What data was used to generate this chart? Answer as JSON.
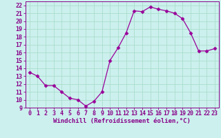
{
  "x": [
    0,
    1,
    2,
    3,
    4,
    5,
    6,
    7,
    8,
    9,
    10,
    11,
    12,
    13,
    14,
    15,
    16,
    17,
    18,
    19,
    20,
    21,
    22,
    23
  ],
  "y": [
    13.5,
    13.0,
    11.8,
    11.8,
    11.0,
    10.2,
    10.0,
    9.2,
    9.8,
    11.0,
    15.0,
    16.6,
    18.5,
    21.3,
    21.2,
    21.8,
    21.5,
    21.3,
    21.0,
    20.3,
    18.5,
    16.2,
    16.2,
    16.5
  ],
  "xlim": [
    -0.5,
    23.5
  ],
  "ylim": [
    9,
    22.5
  ],
  "yticks": [
    9,
    10,
    11,
    12,
    13,
    14,
    15,
    16,
    17,
    18,
    19,
    20,
    21,
    22
  ],
  "xticks": [
    0,
    1,
    2,
    3,
    4,
    5,
    6,
    7,
    8,
    9,
    10,
    11,
    12,
    13,
    14,
    15,
    16,
    17,
    18,
    19,
    20,
    21,
    22,
    23
  ],
  "xlabel": "Windchill (Refroidissement éolien,°C)",
  "line_color": "#990099",
  "marker": "D",
  "marker_size": 2.5,
  "bg_color": "#ccf0ee",
  "grid_color": "#aaddcc",
  "tick_color": "#880088",
  "label_color": "#880088",
  "tick_fontsize": 6.0,
  "xlabel_fontsize": 6.5
}
